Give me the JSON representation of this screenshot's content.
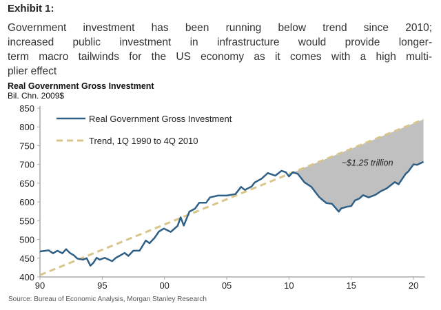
{
  "header": {
    "exhibit": "Exhibit 1:",
    "description_lines": [
      "Government investment has been running below trend since 2010;",
      "increased public investment in infrastructure would provide longer-",
      "term macro tailwinds for the US economy as it comes with a high multi-",
      "plier effect"
    ]
  },
  "source": "Source: Bureau of Economic Analysis, Morgan Stanley Research",
  "chart_data": {
    "type": "line",
    "title": "Real Government  Gross Investment",
    "ylabel": "Bil. Chn. 2009$",
    "xlim": [
      1990,
      2020.8
    ],
    "ylim": [
      400,
      850
    ],
    "yticks": [
      400,
      450,
      500,
      550,
      600,
      650,
      700,
      750,
      800,
      850
    ],
    "xticks": [
      {
        "value": 1990,
        "label": "90"
      },
      {
        "value": 1995,
        "label": "95"
      },
      {
        "value": 2000,
        "label": "00"
      },
      {
        "value": 2005,
        "label": "05"
      },
      {
        "value": 2010,
        "label": "10"
      },
      {
        "value": 2015,
        "label": "15"
      },
      {
        "value": 2020,
        "label": "20"
      }
    ],
    "grid": false,
    "legend_position": "top-left",
    "annotation": {
      "text": "~$1.25 trillion",
      "x": 2016.3,
      "y": 697
    },
    "shaded_gap": {
      "from": 2010.3,
      "to": 2020.8,
      "color": "#c0c0c0"
    },
    "series": [
      {
        "name": "Real Government Gross Investment",
        "color": "#2e5f86",
        "style": "solid",
        "x": [
          1990,
          1990.7,
          1991.05,
          1991.4,
          1991.8,
          1992.1,
          1992.4,
          1992.75,
          1993,
          1993.45,
          1993.75,
          1994.05,
          1994.3,
          1994.55,
          1994.8,
          1995.2,
          1995.8,
          1996.1,
          1996.8,
          1997.1,
          1997.5,
          1998,
          1998.5,
          1998.8,
          1999.2,
          1999.55,
          1999.95,
          2000.5,
          2001.05,
          2001.3,
          2001.55,
          2002,
          2002.45,
          2002.8,
          2003.35,
          2003.65,
          2004.3,
          2005,
          2005.7,
          2006.15,
          2006.45,
          2007,
          2007.25,
          2007.8,
          2008.3,
          2008.9,
          2009.4,
          2009.75,
          2010,
          2010.3,
          2010.7,
          2011.25,
          2011.8,
          2012.45,
          2013,
          2013.45,
          2014,
          2014.2,
          2014.65,
          2015,
          2015.3,
          2015.65,
          2015.95,
          2016.4,
          2016.95,
          2017.4,
          2017.85,
          2018.5,
          2018.8,
          2019.35,
          2019.6,
          2020,
          2020.3,
          2020.8
        ],
        "y": [
          468,
          471,
          463,
          470,
          463,
          474,
          464,
          457,
          449,
          446,
          450,
          430,
          438,
          451,
          446,
          451,
          442,
          451,
          464,
          456,
          470,
          470,
          497,
          490,
          504,
          521,
          529,
          520,
          536,
          559,
          537,
          574,
          582,
          598,
          598,
          612,
          617,
          617,
          621,
          640,
          632,
          641,
          652,
          662,
          677,
          670,
          683,
          679,
          668,
          679,
          675,
          652,
          640,
          612,
          597,
          595,
          574,
          583,
          587,
          589,
          604,
          609,
          618,
          612,
          619,
          629,
          636,
          653,
          647,
          674,
          682,
          700,
          699,
          707
        ]
      },
      {
        "name": "Trend, 1Q 1990 to 4Q 2010",
        "color": "#d9c58a",
        "style": "dashed",
        "x": [
          1990,
          2020.8
        ],
        "y": [
          405,
          820
        ]
      }
    ]
  }
}
